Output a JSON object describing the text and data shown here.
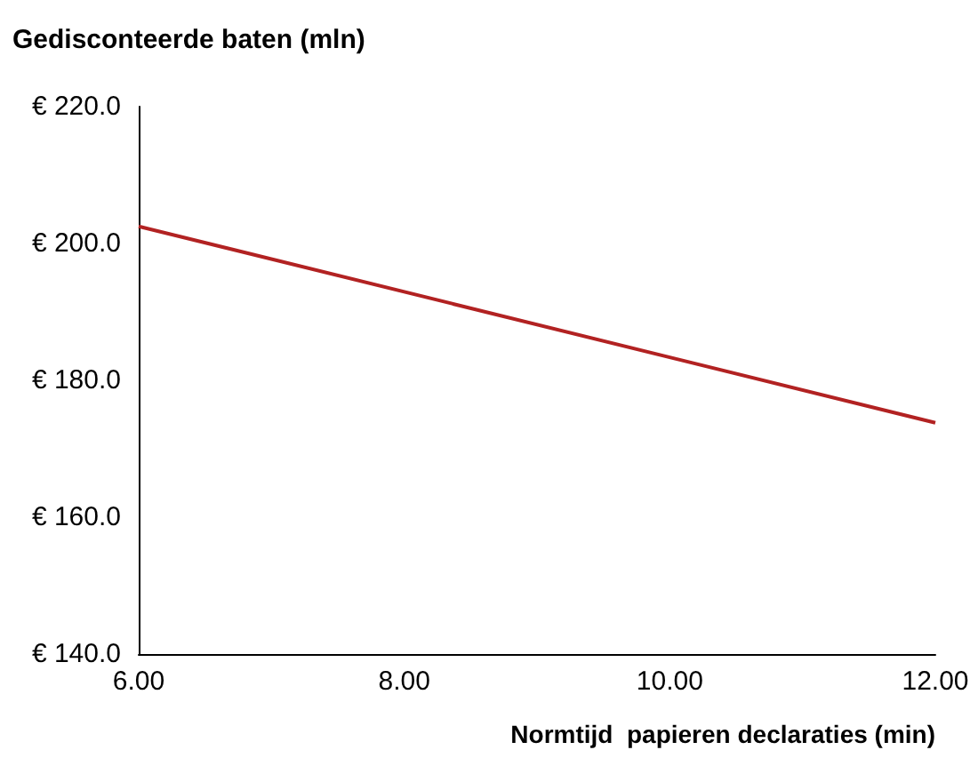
{
  "chart_data": {
    "type": "line",
    "xlabel": "Normtijd  papieren declaraties (min)",
    "ylabel": "Gedisconteerde baten (mln)",
    "x": [
      6,
      12
    ],
    "series": [
      {
        "color": "#b22222",
        "values": [
          202.5,
          173.8
        ]
      }
    ],
    "xlim": [
      6,
      12
    ],
    "xticks": [
      {
        "value": 6,
        "label": "6.00"
      },
      {
        "value": 8,
        "label": "8.00"
      },
      {
        "value": 10,
        "label": "10.00"
      },
      {
        "value": 12,
        "label": "12.00"
      }
    ],
    "ylim": [
      140,
      220
    ],
    "yticks": [
      {
        "value": 140,
        "label": "€ 140.0"
      },
      {
        "value": 160,
        "label": "€ 160.0"
      },
      {
        "value": 180,
        "label": "€ 180.0"
      },
      {
        "value": 200,
        "label": "€ 200.0"
      },
      {
        "value": 220,
        "label": "€ 220.0"
      }
    ],
    "grid": false,
    "marker": "none",
    "line_style": "solid"
  }
}
